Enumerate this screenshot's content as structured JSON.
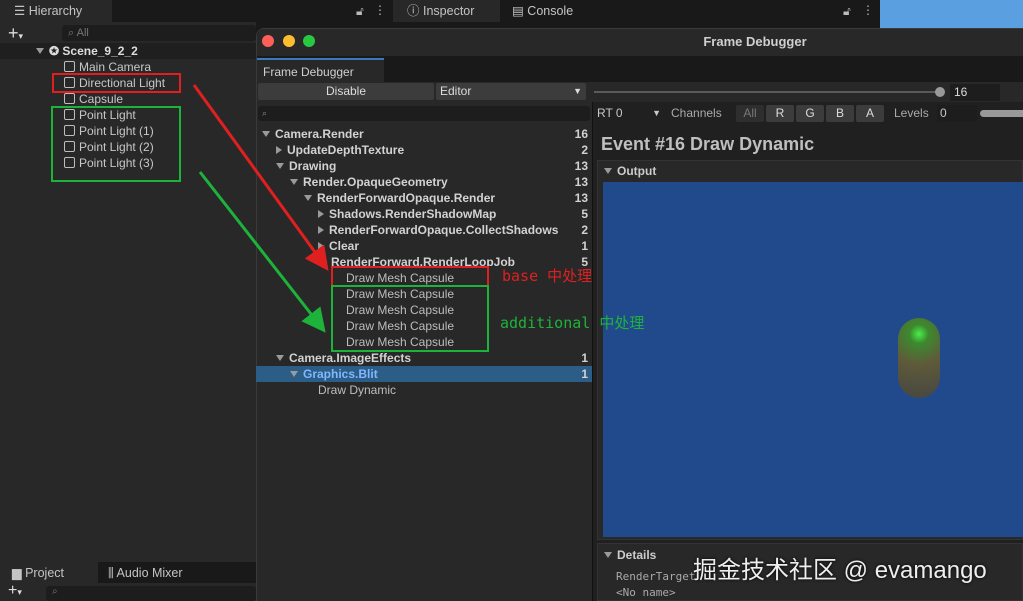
{
  "hierarchy": {
    "tab": "Hierarchy",
    "search_placeholder": "All",
    "scene": "Scene_9_2_2",
    "items": [
      "Main Camera",
      "Directional Light",
      "Capsule",
      "Point Light",
      "Point Light (1)",
      "Point Light (2)",
      "Point Light (3)"
    ]
  },
  "top_tabs": {
    "inspector": "Inspector",
    "console": "Console"
  },
  "bottom_tabs": {
    "project": "Project",
    "audio_mixer": "Audio Mixer"
  },
  "window": {
    "title": "Frame Debugger",
    "tab": "Frame Debugger",
    "disable": "Disable",
    "target": "Editor",
    "event_index": "16",
    "slider_fraction": 1.0
  },
  "tree": [
    {
      "label": "Camera.Render",
      "count": "16",
      "level": 0,
      "arrow": "down"
    },
    {
      "label": "UpdateDepthTexture",
      "count": "2",
      "level": 1,
      "arrow": "right"
    },
    {
      "label": "Drawing",
      "count": "13",
      "level": 1,
      "arrow": "down"
    },
    {
      "label": "Render.OpaqueGeometry",
      "count": "13",
      "level": 2,
      "arrow": "down"
    },
    {
      "label": "RenderForwardOpaque.Render",
      "count": "13",
      "level": 3,
      "arrow": "down"
    },
    {
      "label": "Shadows.RenderShadowMap",
      "count": "5",
      "level": 4,
      "arrow": "right"
    },
    {
      "label": "RenderForwardOpaque.CollectShadows",
      "count": "2",
      "level": 4,
      "arrow": "right"
    },
    {
      "label": "Clear",
      "count": "1",
      "level": 4,
      "arrow": "right"
    },
    {
      "label": "RenderForward.RenderLoopJob",
      "count": "5",
      "level": 4,
      "arrow": "down"
    },
    {
      "label": "Draw Mesh Capsule",
      "count": "",
      "level": 5,
      "arrow": "",
      "leaf": true
    },
    {
      "label": "Draw Mesh Capsule",
      "count": "",
      "level": 5,
      "arrow": "",
      "leaf": true
    },
    {
      "label": "Draw Mesh Capsule",
      "count": "",
      "level": 5,
      "arrow": "",
      "leaf": true
    },
    {
      "label": "Draw Mesh Capsule",
      "count": "",
      "level": 5,
      "arrow": "",
      "leaf": true
    },
    {
      "label": "Draw Mesh Capsule",
      "count": "",
      "level": 5,
      "arrow": "",
      "leaf": true
    },
    {
      "label": "Camera.ImageEffects",
      "count": "1",
      "level": 1,
      "arrow": "down"
    },
    {
      "label": "Graphics.Blit",
      "count": "1",
      "level": 2,
      "arrow": "down",
      "selected": true
    },
    {
      "label": "Draw Dynamic",
      "count": "",
      "level": 3,
      "arrow": "",
      "leaf": true
    }
  ],
  "viewer": {
    "rt": "RT 0",
    "channels": "Channels",
    "channel_buttons": [
      "All",
      "R",
      "G",
      "B",
      "A"
    ],
    "levels": "Levels",
    "levels_value": "0",
    "event_title": "Event #16 Draw Dynamic",
    "output": "Output",
    "details": "Details",
    "render_target": "RenderTarget",
    "render_target_name": "<No name>"
  },
  "annotations": {
    "base": "base 中处理",
    "additional": "additional 中处理",
    "red": "#e02020",
    "green": "#1db33a"
  },
  "watermark": "掘金技术社区 @ evamango"
}
